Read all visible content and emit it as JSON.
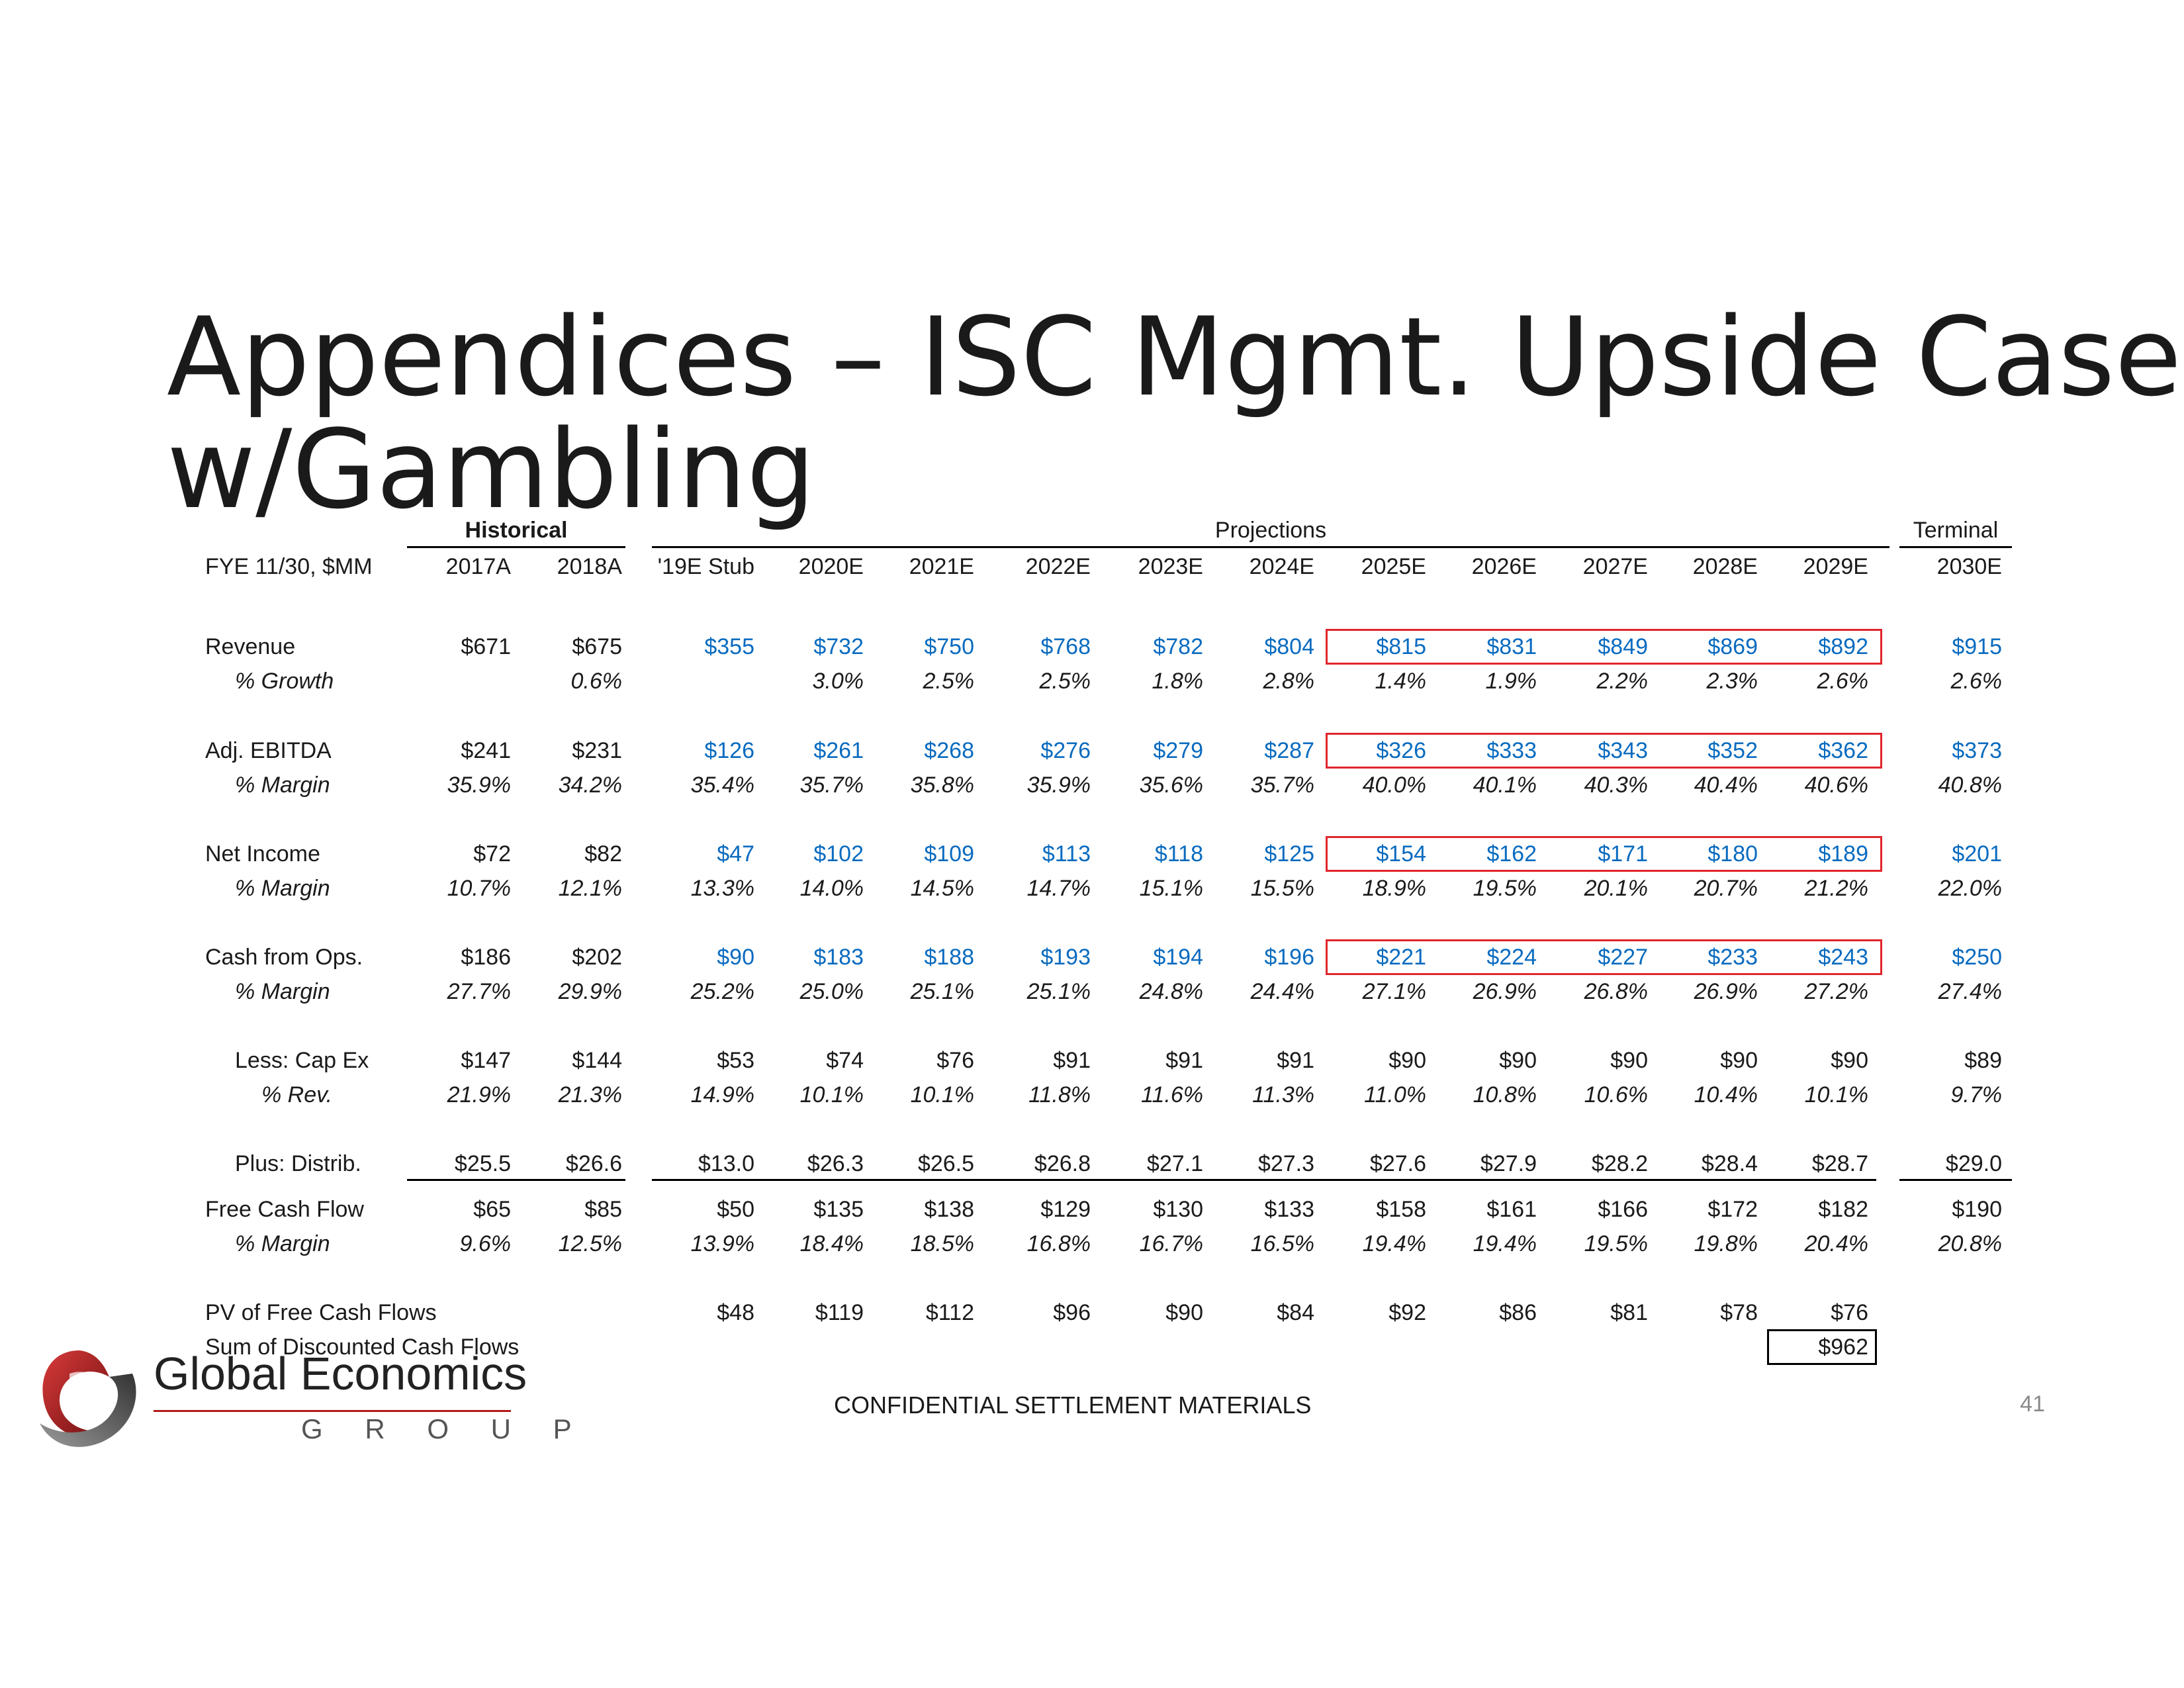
{
  "slide": {
    "title_line1": "Appendices – ISC Mgmt. Upside Case",
    "title_line2": "w/Gambling",
    "footer": "CONFIDENTIAL SETTLEMENT MATERIALS",
    "page_number": "41"
  },
  "logo": {
    "name": "Global Economics",
    "sub": "GROUP"
  },
  "table": {
    "group_headers": {
      "historical": "Historical",
      "projections": "Projections",
      "terminal": "Terminal"
    },
    "unit_label": "FYE 11/30, $MM",
    "columns": [
      "2017A",
      "2018A",
      "'19E Stub",
      "2020E",
      "2021E",
      "2022E",
      "2023E",
      "2024E",
      "2025E",
      "2026E",
      "2027E",
      "2028E",
      "2029E",
      "2030E"
    ],
    "rows": [
      {
        "label": "Revenue",
        "values": [
          "$671",
          "$675",
          "$355",
          "$732",
          "$750",
          "$768",
          "$782",
          "$804",
          "$815",
          "$831",
          "$849",
          "$869",
          "$892",
          "$915"
        ]
      },
      {
        "label": "% Growth",
        "values": [
          "",
          "0.6%",
          "",
          "3.0%",
          "2.5%",
          "2.5%",
          "1.8%",
          "2.8%",
          "1.4%",
          "1.9%",
          "2.2%",
          "2.3%",
          "2.6%",
          "2.6%"
        ]
      },
      {
        "label": "Adj. EBITDA",
        "values": [
          "$241",
          "$231",
          "$126",
          "$261",
          "$268",
          "$276",
          "$279",
          "$287",
          "$326",
          "$333",
          "$343",
          "$352",
          "$362",
          "$373"
        ]
      },
      {
        "label": "% Margin",
        "values": [
          "35.9%",
          "34.2%",
          "35.4%",
          "35.7%",
          "35.8%",
          "35.9%",
          "35.6%",
          "35.7%",
          "40.0%",
          "40.1%",
          "40.3%",
          "40.4%",
          "40.6%",
          "40.8%"
        ]
      },
      {
        "label": "Net Income",
        "values": [
          "$72",
          "$82",
          "$47",
          "$102",
          "$109",
          "$113",
          "$118",
          "$125",
          "$154",
          "$162",
          "$171",
          "$180",
          "$189",
          "$201"
        ]
      },
      {
        "label": "% Margin",
        "values": [
          "10.7%",
          "12.1%",
          "13.3%",
          "14.0%",
          "14.5%",
          "14.7%",
          "15.1%",
          "15.5%",
          "18.9%",
          "19.5%",
          "20.1%",
          "20.7%",
          "21.2%",
          "22.0%"
        ]
      },
      {
        "label": "Cash from Ops.",
        "values": [
          "$186",
          "$202",
          "$90",
          "$183",
          "$188",
          "$193",
          "$194",
          "$196",
          "$221",
          "$224",
          "$227",
          "$233",
          "$243",
          "$250"
        ]
      },
      {
        "label": "% Margin",
        "values": [
          "27.7%",
          "29.9%",
          "25.2%",
          "25.0%",
          "25.1%",
          "25.1%",
          "24.8%",
          "24.4%",
          "27.1%",
          "26.9%",
          "26.8%",
          "26.9%",
          "27.2%",
          "27.4%"
        ]
      },
      {
        "label": "Less: Cap Ex",
        "values": [
          "$147",
          "$144",
          "$53",
          "$74",
          "$76",
          "$91",
          "$91",
          "$91",
          "$90",
          "$90",
          "$90",
          "$90",
          "$90",
          "$89"
        ]
      },
      {
        "label": "% Rev.",
        "values": [
          "21.9%",
          "21.3%",
          "14.9%",
          "10.1%",
          "10.1%",
          "11.8%",
          "11.6%",
          "11.3%",
          "11.0%",
          "10.8%",
          "10.6%",
          "10.4%",
          "10.1%",
          "9.7%"
        ]
      },
      {
        "label": "Plus: Distrib.",
        "values": [
          "$25.5",
          "$26.6",
          "$13.0",
          "$26.3",
          "$26.5",
          "$26.8",
          "$27.1",
          "$27.3",
          "$27.6",
          "$27.9",
          "$28.2",
          "$28.4",
          "$28.7",
          "$29.0"
        ]
      },
      {
        "label": "Free Cash Flow",
        "values": [
          "$65",
          "$85",
          "$50",
          "$135",
          "$138",
          "$129",
          "$130",
          "$133",
          "$158",
          "$161",
          "$166",
          "$172",
          "$182",
          "$190"
        ]
      },
      {
        "label": "% Margin",
        "values": [
          "9.6%",
          "12.5%",
          "13.9%",
          "18.4%",
          "18.5%",
          "16.8%",
          "16.7%",
          "16.5%",
          "19.4%",
          "19.4%",
          "19.5%",
          "19.8%",
          "20.4%",
          "20.8%"
        ]
      },
      {
        "label": "PV of Free Cash Flows",
        "values": [
          "",
          "",
          "$48",
          "$119",
          "$112",
          "$96",
          "$90",
          "$84",
          "$92",
          "$86",
          "$81",
          "$78",
          "$76",
          ""
        ]
      }
    ],
    "sum_label": "Sum of Discounted Cash Flows",
    "sum_value": "$962",
    "colors": {
      "projection_font": "#0a6bbf",
      "highlight_box": "#e0262b"
    }
  }
}
